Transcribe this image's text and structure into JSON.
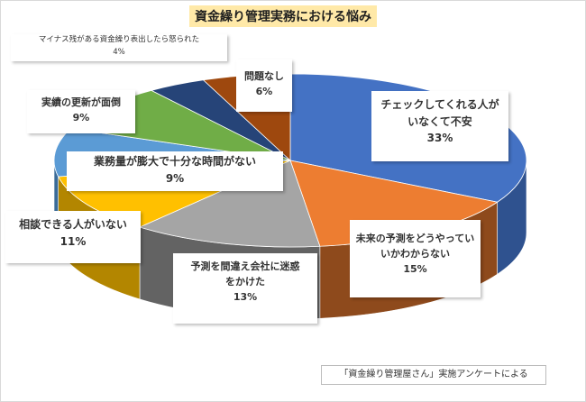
{
  "chart_data": {
    "type": "pie",
    "title": "資金繰り管理実務における悩み",
    "slices": [
      {
        "label": "チェックしてくれる人がいなくて不安",
        "value": 33,
        "pct": "33%",
        "color": "#4472c4",
        "dark": "#2f528f"
      },
      {
        "label": "未来の予測をどうやっていいかわからない",
        "value": 15,
        "pct": "15%",
        "color": "#ed7d31",
        "dark": "#8e4a1c"
      },
      {
        "label": "予測を間違え会社に迷惑をかけた",
        "value": 13,
        "pct": "13%",
        "color": "#a5a5a5",
        "dark": "#636363"
      },
      {
        "label": "相談できる人がいない",
        "value": 11,
        "pct": "11%",
        "color": "#ffc000",
        "dark": "#b38600"
      },
      {
        "label": "業務量が膨大で十分な時間がない",
        "value": 9,
        "pct": "9%",
        "color": "#5b9bd5",
        "dark": "#3a6b98"
      },
      {
        "label": "実績の更新が面倒",
        "value": 9,
        "pct": "9%",
        "color": "#70ad47",
        "dark": "#4a7530"
      },
      {
        "label": "マイナス残がある資金繰り表出したら怒られた",
        "value": 4,
        "pct": "4%",
        "color": "#264478",
        "dark": "#172a4a"
      },
      {
        "label": "問題なし",
        "value": 6,
        "pct": "6%",
        "color": "#9e480e",
        "dark": "#632d09"
      }
    ]
  },
  "labels": {
    "check": {
      "line1": "チェックしてくれる人が",
      "line2": "いなくて不安",
      "pct": "33%"
    },
    "mirai": {
      "line1": "未来の予測をどうやってい",
      "line2": "いかわからない",
      "pct": "15%"
    },
    "yosoku": {
      "line1": "予測を間違え会社に迷惑",
      "line2": "をかけた",
      "pct": "13%"
    },
    "soudan": {
      "line1": "相談できる人がいない",
      "pct": "11%"
    },
    "gyomu": {
      "line1": "業務量が膨大で十分な時間がない",
      "pct": "9%"
    },
    "jisseki": {
      "line1": "実績の更新が面倒",
      "pct": "9%"
    },
    "mainasu": {
      "line1": "マイナス残がある資金繰り表出したら怒られた",
      "pct": "4%"
    },
    "mondai": {
      "line1": "問題なし",
      "pct": "6%"
    }
  },
  "source": "「資金繰り管理屋さん」実施アンケートによる"
}
